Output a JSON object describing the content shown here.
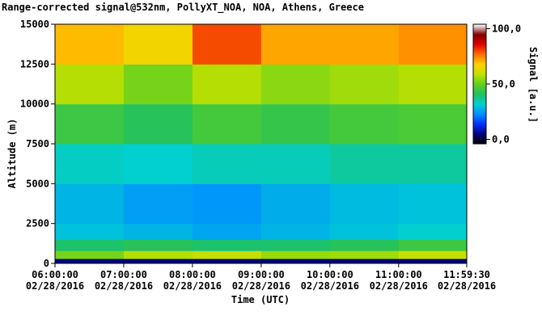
{
  "chart_data": {
    "type": "heatmap",
    "title": "Range-corrected signal@532nm, PollyXT_NOA, NOA, Athens, Greece",
    "xlabel": "Time (UTC)",
    "ylabel": "Altitude (m)",
    "xlim": [
      6,
      11.9917
    ],
    "ylim": [
      0,
      15000
    ],
    "xticks": [
      {
        "value": 6,
        "label": "06:00:00\n02/28/2016"
      },
      {
        "value": 7,
        "label": "07:00:00\n02/28/2016"
      },
      {
        "value": 8,
        "label": "08:00:00\n02/28/2016"
      },
      {
        "value": 9,
        "label": "09:00:00\n02/28/2016"
      },
      {
        "value": 10,
        "label": "10:00:00\n02/28/2016"
      },
      {
        "value": 11,
        "label": "11:00:00\n02/28/2016"
      },
      {
        "value": 11.9917,
        "label": "11:59:30\n02/28/2016"
      }
    ],
    "yticks": [
      0,
      2500,
      5000,
      7500,
      10000,
      12500,
      15000
    ],
    "x_edges": [
      6,
      7,
      8,
      9,
      10,
      11,
      11.9917
    ],
    "y_edges": [
      0,
      300,
      800,
      1500,
      2500,
      5000,
      7500,
      10000,
      12500,
      15000
    ],
    "z": [
      [
        5,
        5,
        5,
        5,
        5,
        5
      ],
      [
        52,
        58,
        60,
        55,
        56,
        60
      ],
      [
        40,
        42,
        40,
        40,
        42,
        45
      ],
      [
        30,
        28,
        26,
        28,
        30,
        32
      ],
      [
        28,
        25,
        24,
        27,
        29,
        30
      ],
      [
        33,
        32,
        34,
        34,
        36,
        36
      ],
      [
        45,
        42,
        46,
        44,
        46,
        47
      ],
      [
        58,
        52,
        58,
        54,
        56,
        58
      ],
      [
        70,
        66,
        80,
        72,
        72,
        74
      ]
    ],
    "colorbar": {
      "label": "Signal [a.u.]",
      "lim": [
        -4,
        104
      ],
      "ticks": [
        {
          "value": 0,
          "label": "0,0"
        },
        {
          "value": 50,
          "label": "50,0"
        },
        {
          "value": 100,
          "label": "100,0"
        }
      ],
      "colors": [
        "#000000",
        "#00007f",
        "#0030ff",
        "#0090ff",
        "#00d0d0",
        "#20c060",
        "#60d020",
        "#c0e000",
        "#ffd000",
        "#ff7000",
        "#e00000",
        "#800000",
        "#ffffff"
      ]
    }
  }
}
